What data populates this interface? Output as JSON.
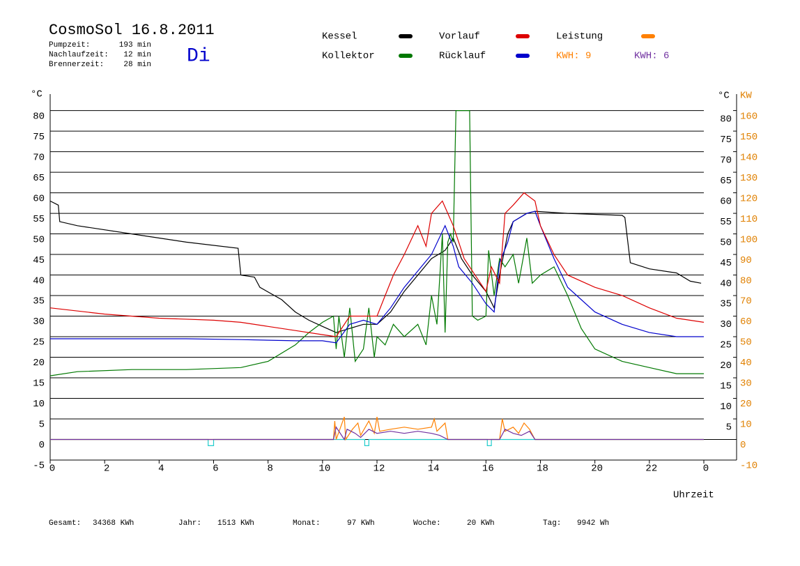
{
  "chart_data": {
    "type": "line",
    "title": "CosmoSol 16.8.2011",
    "day": "Di",
    "info": [
      {
        "label": "Pumpzeit:",
        "value": "193 min"
      },
      {
        "label": "Nachlaufzeit:",
        "value": "12 min"
      },
      {
        "label": "Brennerzeit:",
        "value": "28 min"
      }
    ],
    "footer": [
      {
        "label": "Gesamt:",
        "value": "34368 KWh"
      },
      {
        "label": "Jahr:",
        "value": "1513 KWh"
      },
      {
        "label": "Monat:",
        "value": "97 KWh"
      },
      {
        "label": "Woche:",
        "value": "20 KWh"
      },
      {
        "label": "Tag:",
        "value": "9942 Wh"
      }
    ],
    "xlabel": "Uhrzeit",
    "ylabel": "°C",
    "y2label": "KW",
    "yrightlabel": "°C",
    "xlim": [
      0,
      24
    ],
    "xticks": [
      0,
      2,
      4,
      6,
      8,
      10,
      12,
      14,
      16,
      18,
      20,
      22,
      {
        "value": 24,
        "label": "0"
      }
    ],
    "ylim": [
      -5,
      84
    ],
    "yticks": [
      -5,
      0,
      5,
      10,
      15,
      20,
      25,
      30,
      35,
      40,
      45,
      50,
      55,
      60,
      65,
      70,
      75,
      80
    ],
    "yticks_right": [
      5,
      10,
      15,
      20,
      25,
      30,
      35,
      40,
      45,
      50,
      55,
      60,
      65,
      70,
      75,
      80
    ],
    "y2lim": [
      -10,
      168
    ],
    "y2ticks": [
      -10,
      0,
      10,
      20,
      30,
      40,
      50,
      60,
      70,
      80,
      90,
      100,
      110,
      120,
      130,
      140,
      150,
      160
    ],
    "grid": true,
    "series": [
      {
        "name": "Kessel",
        "color": "#000000",
        "x": [
          0,
          0.3,
          0.35,
          1,
          3,
          5,
          6.9,
          7.0,
          7.5,
          7.7,
          8.5,
          9,
          9.5,
          10,
          10.5,
          11,
          11.5,
          12,
          12.5,
          13,
          13.5,
          14,
          14.5,
          14.8,
          15.1,
          15.5,
          16,
          16.3,
          16.5,
          16.8,
          17,
          17.5,
          17.8,
          19,
          21,
          21.1,
          21.3,
          22,
          23,
          23.5,
          23.9
        ],
        "values": [
          58,
          57,
          53,
          52,
          50,
          48,
          46.5,
          40,
          39.5,
          37,
          34,
          31,
          29,
          27.5,
          26,
          27,
          28,
          28,
          31,
          36,
          40,
          44,
          46,
          49,
          44,
          40,
          36,
          32,
          40,
          50,
          53,
          55,
          55.5,
          55,
          54.5,
          54,
          43,
          41.5,
          40.5,
          38.5,
          38
        ]
      },
      {
        "name": "Kollektor",
        "color": "#007800",
        "x": [
          0,
          1,
          3,
          5,
          7,
          8,
          9,
          9.5,
          10,
          10.4,
          10.5,
          10.6,
          10.8,
          11,
          11.2,
          11.5,
          11.7,
          11.9,
          12,
          12.3,
          12.6,
          13,
          13.5,
          13.8,
          14,
          14.2,
          14.4,
          14.5,
          14.6,
          14.7,
          14.8,
          14.9,
          15.0,
          15.4,
          15.5,
          15.7,
          16,
          16.1,
          16.3,
          16.5,
          16.7,
          17,
          17.2,
          17.5,
          17.7,
          18,
          18.5,
          19,
          19.5,
          20,
          21,
          22,
          23,
          24
        ],
        "values": [
          15.5,
          16.5,
          17,
          17,
          17.5,
          19,
          23,
          26,
          28.5,
          30,
          22,
          30,
          20,
          32,
          19,
          22,
          32,
          20,
          25,
          23,
          28,
          25,
          28,
          23,
          35,
          28,
          50,
          26,
          48,
          50,
          48,
          80,
          80,
          80,
          30,
          29,
          30,
          46,
          35,
          44,
          42,
          45,
          38,
          49,
          38,
          40,
          42,
          35,
          27,
          22,
          19,
          17.5,
          16,
          16
        ]
      },
      {
        "name": "Vorlauf",
        "color": "#dd0000",
        "x": [
          0,
          2,
          4,
          6,
          7,
          8,
          9,
          10,
          10.5,
          11,
          11.5,
          12,
          12.3,
          12.6,
          13,
          13.5,
          13.8,
          14,
          14.4,
          14.8,
          15.2,
          15.6,
          16,
          16.2,
          16.5,
          16.7,
          17,
          17.4,
          17.8,
          18,
          18.5,
          19,
          20,
          21,
          22,
          23,
          24
        ],
        "values": [
          32,
          30.5,
          29.5,
          29,
          28.5,
          27.5,
          26.5,
          25.5,
          25,
          30,
          30,
          30,
          35,
          40,
          45,
          52,
          47,
          55,
          58,
          52,
          44,
          40,
          36,
          42,
          38,
          55,
          57,
          60,
          58,
          52,
          45,
          40,
          37,
          35,
          32,
          29.5,
          28.5
        ]
      },
      {
        "name": "Rücklauf",
        "color": "#0000cc",
        "x": [
          0,
          5,
          7,
          9,
          10,
          10.5,
          11,
          11.5,
          12,
          12.5,
          13,
          13.5,
          14,
          14.5,
          14.8,
          15,
          15.5,
          16,
          16.3,
          16.5,
          16.8,
          17,
          17.5,
          17.8,
          18,
          18.5,
          19,
          20,
          21,
          22,
          23,
          24
        ],
        "values": [
          24.5,
          24.5,
          24.3,
          24,
          24,
          23.5,
          28,
          29,
          28,
          32,
          37,
          41,
          45,
          52,
          47,
          42,
          38,
          33,
          31,
          43,
          48,
          53,
          55,
          55.5,
          52,
          44,
          37,
          31,
          28,
          26,
          25,
          25
        ]
      },
      {
        "name": "Leistung",
        "color": "#ff8000",
        "axis": "y2",
        "energy_label": "KWH: 9",
        "x": [
          0,
          10.4,
          10.45,
          10.5,
          10.8,
          10.85,
          11.1,
          11.3,
          11.4,
          11.7,
          11.9,
          12,
          12.1,
          12.5,
          13,
          13.5,
          14,
          14.1,
          14.2,
          14.5,
          14.6,
          16.5,
          16.6,
          16.7,
          17,
          17.2,
          17.4,
          17.6,
          17.8,
          24
        ],
        "values": [
          0,
          0,
          9,
          0,
          11,
          0,
          5,
          8,
          2,
          9,
          3,
          11,
          4,
          5,
          6,
          5,
          6,
          10,
          4,
          8,
          0,
          0,
          10,
          4,
          6,
          3,
          8,
          5,
          0,
          0
        ]
      },
      {
        "name": "KWH: 6",
        "color": "#7030a0",
        "axis": "y2",
        "x": [
          0,
          10.4,
          10.5,
          10.8,
          10.9,
          11.2,
          11.4,
          11.7,
          12,
          12.5,
          13,
          13.5,
          14,
          14.3,
          14.6,
          16.5,
          16.7,
          17,
          17.3,
          17.6,
          17.8,
          24
        ],
        "values": [
          0,
          0,
          6,
          0,
          5,
          3,
          1,
          5,
          3,
          4,
          3,
          4,
          3,
          2,
          0,
          0,
          5,
          3,
          2,
          4,
          0,
          0
        ]
      },
      {
        "color": "#22cccc",
        "x": [
          0,
          5.8,
          5.8,
          6.0,
          6.0,
          11.55,
          11.55,
          11.7,
          11.7,
          16.05,
          16.05,
          16.2,
          16.2,
          24
        ],
        "values": [
          0,
          0,
          -1.5,
          -1.5,
          0,
          0,
          -1.5,
          -1.5,
          0,
          0,
          -1.5,
          -1.5,
          0,
          0
        ]
      }
    ]
  }
}
